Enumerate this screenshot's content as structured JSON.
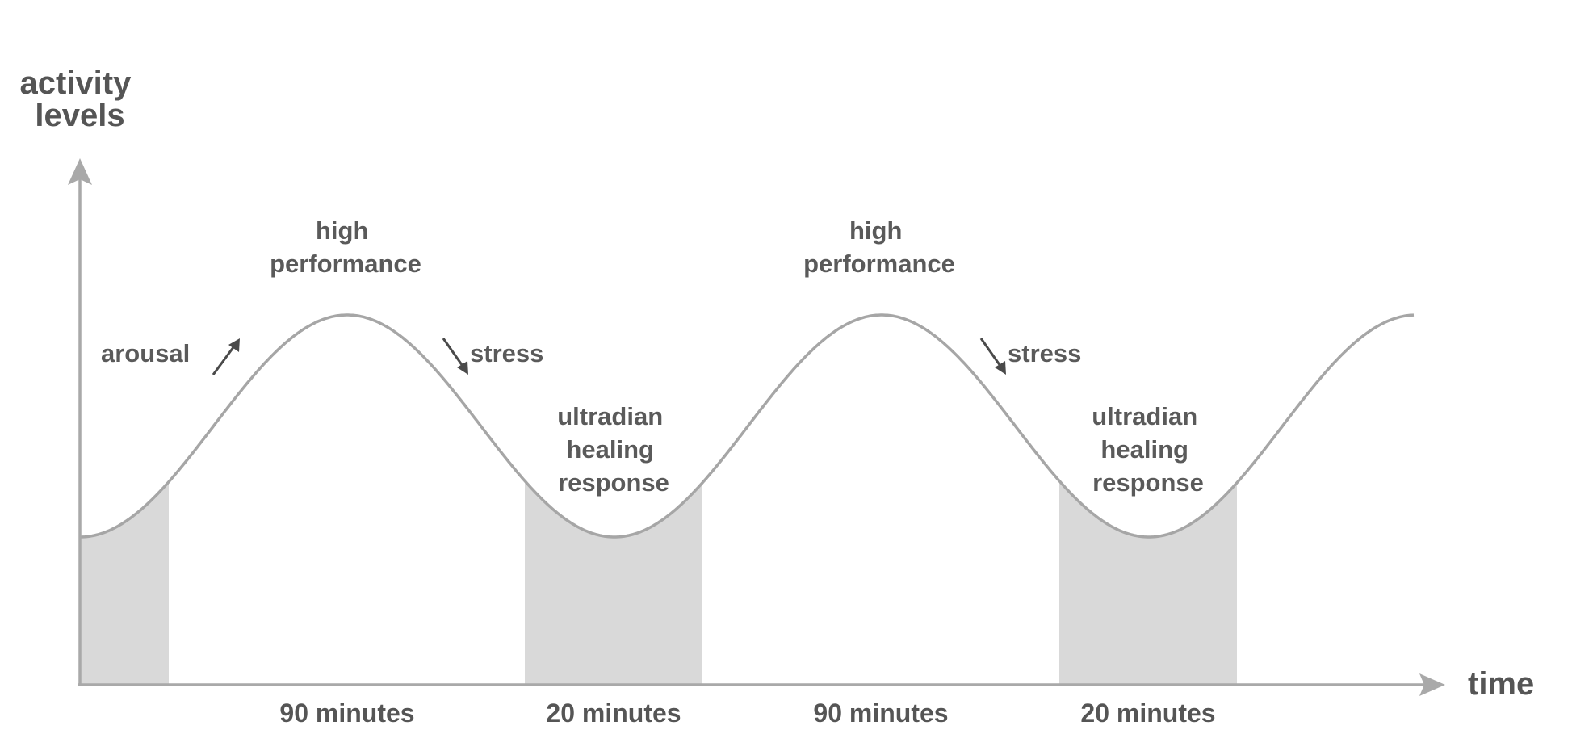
{
  "diagram": {
    "y_axis_title": [
      "activity",
      "levels"
    ],
    "x_axis_title": "time",
    "peak_labels": [
      [
        "high",
        "performance"
      ],
      [
        "high",
        "performance"
      ]
    ],
    "arousal_label": "arousal",
    "stress_labels": [
      "stress",
      "stress"
    ],
    "trough_labels": [
      [
        "ultradian",
        "healing",
        "response"
      ],
      [
        "ultradian",
        "healing",
        "response"
      ]
    ],
    "durations": [
      "90 minutes",
      "20 minutes",
      "90 minutes",
      "20 minutes"
    ],
    "colors": {
      "axis": "#a9a9a9",
      "curve": "#a6a6a6",
      "shade": "#d9d9d9",
      "text": "#555555",
      "arrow": "#4a4a4a"
    }
  }
}
